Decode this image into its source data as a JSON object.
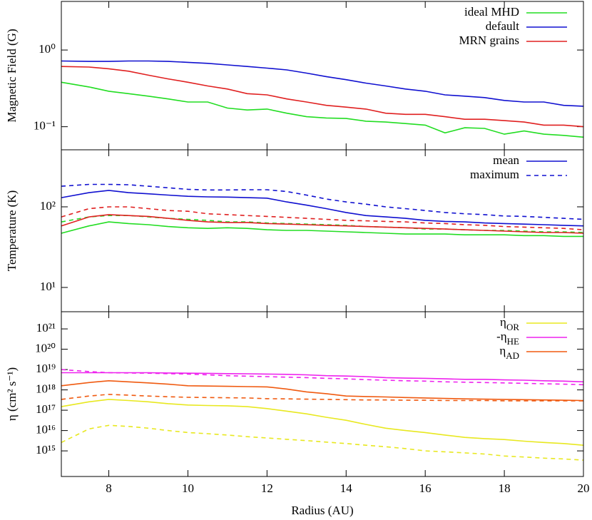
{
  "chart_data": [
    {
      "type": "line",
      "ylabel": "Magnetic Field (G)",
      "log_y": true,
      "x": [
        6.8,
        7.5,
        8,
        8.5,
        9,
        9.5,
        10,
        10.5,
        11,
        11.5,
        12,
        12.5,
        13,
        13.5,
        14,
        14.5,
        15,
        15.5,
        16,
        16.5,
        17,
        17.5,
        18,
        18.5,
        19,
        19.5,
        20
      ],
      "xlim": [
        6.8,
        20
      ],
      "xticks": [
        8,
        10,
        12,
        14,
        16,
        18,
        20
      ],
      "ylim": [
        0.05,
        4.3
      ],
      "yticks": [
        {
          "value": 1,
          "label": "10⁰"
        },
        {
          "value": 0.1,
          "label": "10⁻¹"
        }
      ],
      "series": [
        {
          "name": "ideal MHD",
          "color": "#22dd22",
          "dash": false,
          "values": [
            0.38,
            0.33,
            0.29,
            0.27,
            0.25,
            0.23,
            0.21,
            0.21,
            0.175,
            0.165,
            0.17,
            0.15,
            0.135,
            0.13,
            0.128,
            0.118,
            0.115,
            0.11,
            0.105,
            0.083,
            0.097,
            0.095,
            0.08,
            0.088,
            0.08,
            0.077,
            0.073
          ]
        },
        {
          "name": "default",
          "color": "#1010d0",
          "dash": false,
          "values": [
            0.72,
            0.71,
            0.71,
            0.72,
            0.72,
            0.71,
            0.69,
            0.67,
            0.64,
            0.61,
            0.58,
            0.55,
            0.5,
            0.45,
            0.41,
            0.37,
            0.34,
            0.31,
            0.29,
            0.26,
            0.25,
            0.24,
            0.22,
            0.21,
            0.21,
            0.19,
            0.185
          ]
        },
        {
          "name": "MRN grains",
          "color": "#e02020",
          "dash": false,
          "values": [
            0.61,
            0.6,
            0.57,
            0.53,
            0.47,
            0.42,
            0.38,
            0.34,
            0.31,
            0.27,
            0.26,
            0.23,
            0.21,
            0.19,
            0.18,
            0.17,
            0.15,
            0.145,
            0.145,
            0.135,
            0.125,
            0.125,
            0.12,
            0.115,
            0.105,
            0.105,
            0.1
          ]
        }
      ]
    },
    {
      "type": "line",
      "ylabel": "Temperature (K)",
      "log_y": true,
      "x": [
        6.8,
        7.5,
        8,
        8.5,
        9,
        9.5,
        10,
        10.5,
        11,
        11.5,
        12,
        12.5,
        13,
        13.5,
        14,
        14.5,
        15,
        15.5,
        16,
        16.5,
        17,
        17.5,
        18,
        18.5,
        19,
        19.5,
        20
      ],
      "xlim": [
        6.8,
        20
      ],
      "xticks": [
        8,
        10,
        12,
        14,
        16,
        18,
        20
      ],
      "ylim": [
        5,
        510
      ],
      "yticks": [
        {
          "value": 100,
          "label": "10²"
        },
        {
          "value": 10,
          "label": "10¹"
        }
      ],
      "legend": [
        {
          "name": "mean",
          "color": "#1010d0",
          "dash": false
        },
        {
          "name": "maximum",
          "color": "#1010d0",
          "dash": true
        }
      ],
      "series": [
        {
          "color": "#22dd22",
          "dash": false,
          "values": [
            47,
            58,
            65,
            62,
            60,
            57,
            55,
            54,
            55,
            54,
            52,
            51,
            51,
            50,
            49,
            48,
            47,
            46,
            46,
            46,
            45,
            45,
            45,
            44,
            44,
            43,
            43
          ]
        },
        {
          "color": "#22dd22",
          "dash": true,
          "values": [
            65,
            75,
            78,
            78,
            75,
            72,
            70,
            68,
            65,
            65,
            63,
            62,
            61,
            60,
            59,
            57,
            56,
            55,
            53,
            53,
            52,
            51,
            51,
            50,
            49,
            49,
            48
          ]
        },
        {
          "color": "#1010d0",
          "dash": false,
          "values": [
            130,
            150,
            160,
            150,
            145,
            140,
            135,
            133,
            132,
            130,
            128,
            115,
            105,
            95,
            85,
            78,
            75,
            72,
            68,
            66,
            65,
            63,
            62,
            61,
            60,
            59,
            58
          ]
        },
        {
          "color": "#1010d0",
          "dash": true,
          "values": [
            180,
            190,
            190,
            188,
            180,
            172,
            165,
            162,
            162,
            163,
            163,
            155,
            140,
            125,
            115,
            108,
            100,
            95,
            90,
            85,
            82,
            80,
            77,
            76,
            74,
            72,
            70
          ]
        },
        {
          "color": "#e02020",
          "dash": false,
          "values": [
            58,
            75,
            80,
            78,
            76,
            72,
            68,
            65,
            64,
            64,
            62,
            61,
            60,
            59,
            58,
            57,
            56,
            55,
            54,
            53,
            52,
            51,
            50,
            49,
            48,
            48,
            47
          ]
        },
        {
          "color": "#e02020",
          "dash": true,
          "values": [
            75,
            95,
            100,
            100,
            95,
            90,
            88,
            82,
            80,
            78,
            76,
            74,
            72,
            70,
            68,
            67,
            66,
            65,
            63,
            62,
            60,
            59,
            57,
            56,
            55,
            54,
            52
          ]
        }
      ]
    },
    {
      "type": "line",
      "ylabel": "η (cm² s⁻¹)",
      "xlabel": "Radius (AU)",
      "log_y": true,
      "x": [
        6.8,
        7.5,
        8,
        8.5,
        9,
        9.5,
        10,
        10.5,
        11,
        11.5,
        12,
        12.5,
        13,
        13.5,
        14,
        14.5,
        15,
        15.5,
        16,
        16.5,
        17,
        17.5,
        18,
        18.5,
        19,
        19.5,
        20
      ],
      "xlim": [
        6.8,
        20
      ],
      "xticks": [
        8,
        10,
        12,
        14,
        16,
        18,
        20
      ],
      "ylim": [
        55000000000000.0,
        7e+21
      ],
      "yticks": [
        {
          "value": 1e+21,
          "label": "10²¹"
        },
        {
          "value": 1e+20,
          "label": "10²⁰"
        },
        {
          "value": 1e+19,
          "label": "10¹⁹"
        },
        {
          "value": 1e+18,
          "label": "10¹⁸"
        },
        {
          "value": 1e+17,
          "label": "10¹⁷"
        },
        {
          "value": 1e+16,
          "label": "10¹⁶"
        },
        {
          "value": 1000000000000000.0,
          "label": "10¹⁵"
        }
      ],
      "series": [
        {
          "name": "η",
          "subscript": "OR",
          "color": "#e8e820",
          "dash": false,
          "values": [
            1.5e+17,
            2.6e+17,
            3.4e+17,
            3e+17,
            2.6e+17,
            2.1e+17,
            1.8e+17,
            1.7e+17,
            1.65e+17,
            1.5e+17,
            1.2e+17,
            9e+16,
            6.6e+16,
            4.5e+16,
            3.2e+16,
            2e+16,
            1.3e+16,
            1e+16,
            8000000000000000.0,
            6000000000000000.0,
            4600000000000000.0,
            4000000000000000.0,
            3600000000000000.0,
            3000000000000000.0,
            2600000000000000.0,
            2300000000000000.0,
            1900000000000000.0
          ]
        },
        {
          "color": "#e8e820",
          "dash": true,
          "values": [
            2600000000000000.0,
            1.2e+16,
            1.8e+16,
            1.6e+16,
            1.3e+16,
            1e+16,
            8000000000000000.0,
            7000000000000000.0,
            6000000000000000.0,
            5000000000000000.0,
            4300000000000000.0,
            3700000000000000.0,
            3200000000000000.0,
            2700000000000000.0,
            2300000000000000.0,
            1900000000000000.0,
            1600000000000000.0,
            1300000000000000.0,
            1000000000000000.0,
            900000000000000.0,
            800000000000000.0,
            700000000000000.0,
            560000000000000.0,
            500000000000000.0,
            440000000000000.0,
            400000000000000.0,
            350000000000000.0
          ]
        },
        {
          "name": "-η",
          "subscript": "HE",
          "color": "#ee22ee",
          "dash": false,
          "values": [
            7e+18,
            7e+18,
            7e+18,
            7e+18,
            7e+18,
            6.8e+18,
            6.6e+18,
            6.5e+18,
            6.3e+18,
            6.2e+18,
            6e+18,
            5.8e+18,
            5.5e+18,
            5e+18,
            4.8e+18,
            4.5e+18,
            4e+18,
            3.8e+18,
            3.7e+18,
            3.5e+18,
            3.3e+18,
            3.3e+18,
            3.1e+18,
            3e+18,
            2.8e+18,
            2.7e+18,
            2.5e+18
          ]
        },
        {
          "color": "#ee22ee",
          "dash": true,
          "values": [
            1e+19,
            8e+18,
            7e+18,
            6.8e+18,
            6.6e+18,
            6.3e+18,
            6e+18,
            5.5e+18,
            5e+18,
            4.7e+18,
            4.5e+18,
            4.2e+18,
            4e+18,
            3.7e+18,
            3.5e+18,
            3.2e+18,
            3e+18,
            2.8e+18,
            2.7e+18,
            2.5e+18,
            2.4e+18,
            2.3e+18,
            2.2e+18,
            2.1e+18,
            2e+18,
            1.9e+18,
            1.8e+18
          ]
        },
        {
          "name": "η",
          "subscript": "AD",
          "color": "#f05a10",
          "dash": false,
          "values": [
            1.6e+18,
            2.3e+18,
            2.8e+18,
            2.5e+18,
            2.2e+18,
            1.9e+18,
            1.6e+18,
            1.55e+18,
            1.5e+18,
            1.45e+18,
            1.4e+18,
            1.1e+18,
            8e+17,
            6.5e+17,
            5e+17,
            4.7e+17,
            4.5e+17,
            4.2e+17,
            4e+17,
            3.8e+17,
            3.6e+17,
            3.5e+17,
            3.4e+17,
            3.3e+17,
            3.2e+17,
            3.1e+17,
            3e+17
          ]
        },
        {
          "color": "#f05a10",
          "dash": true,
          "values": [
            3.4e+17,
            5e+17,
            6e+17,
            5.5e+17,
            5e+17,
            4.6e+17,
            4.3e+17,
            4.2e+17,
            4.1e+17,
            4e+17,
            3.7e+17,
            3.6e+17,
            3.5e+17,
            3.4e+17,
            3.3e+17,
            3.2e+17,
            3.2e+17,
            3.1e+17,
            3.1e+17,
            3e+17,
            3e+17,
            3e+17,
            2.9e+17,
            2.9e+17,
            2.9e+17,
            2.9e+17,
            2.9e+17
          ]
        }
      ]
    }
  ]
}
